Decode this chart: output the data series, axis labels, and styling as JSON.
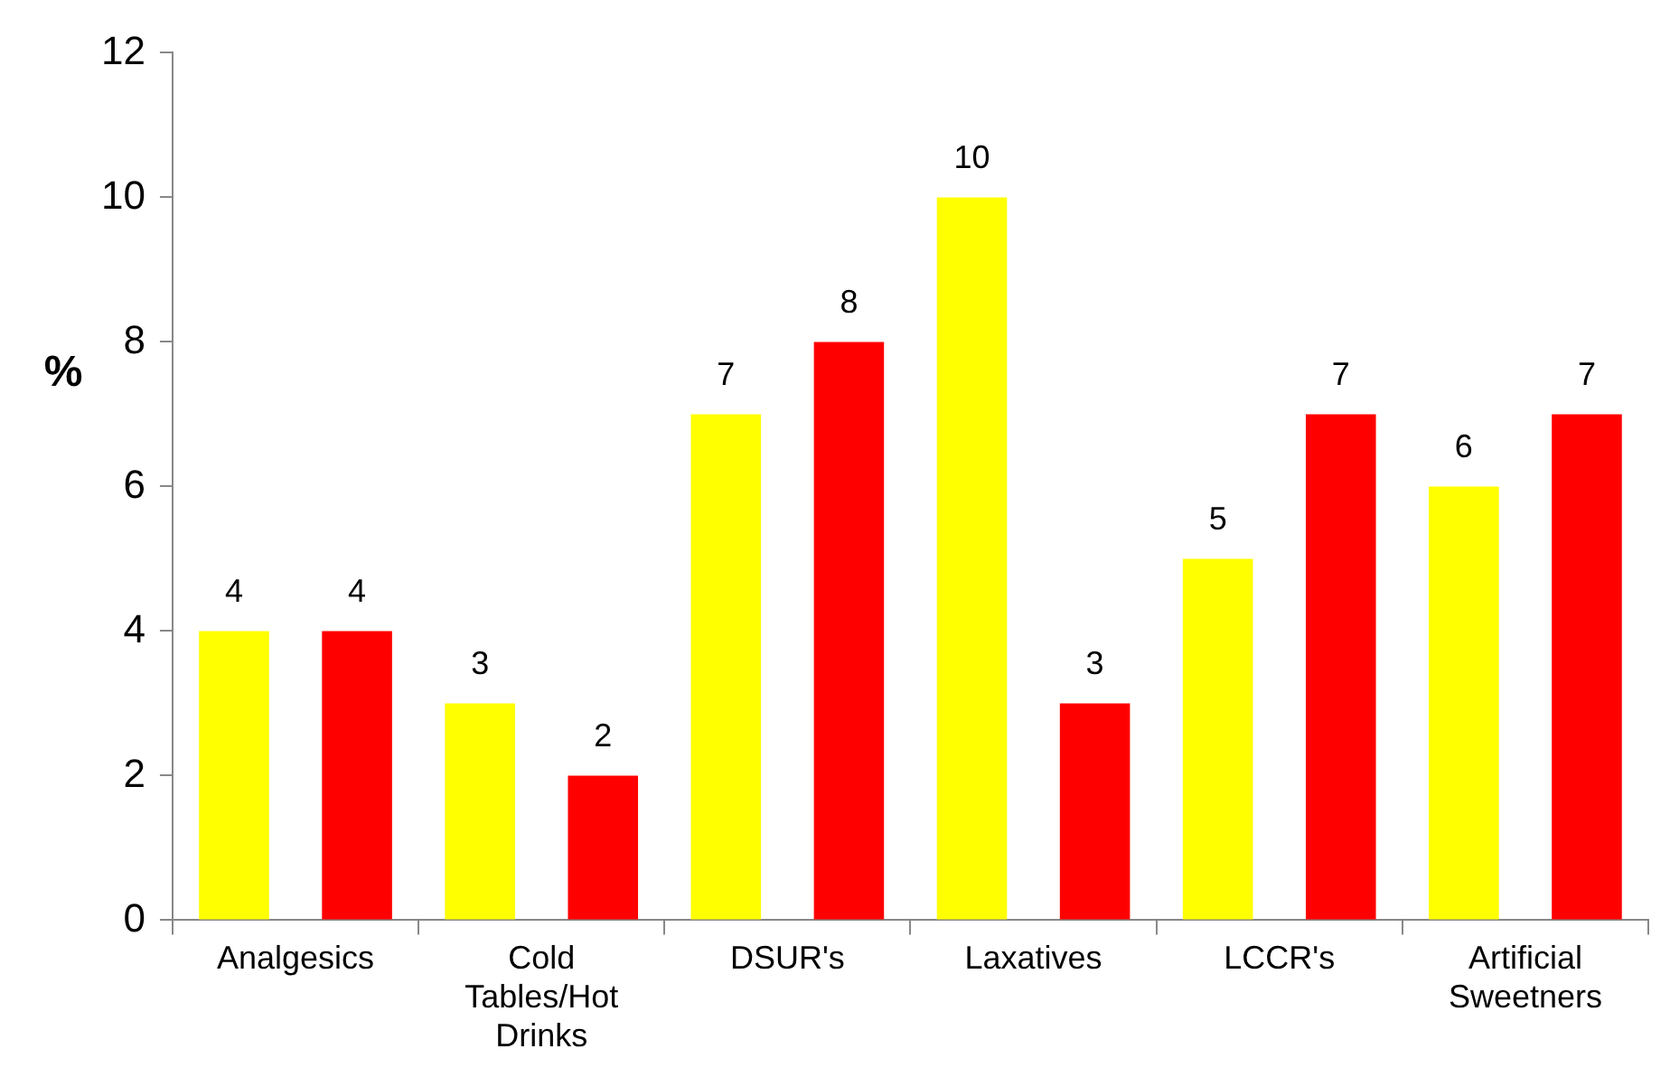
{
  "chart_data": {
    "type": "bar",
    "ylabel": "%",
    "categories": [
      "Analgesics",
      "Cold Tables/Hot Drinks",
      "DSUR's",
      "Laxatives",
      "LCCR's",
      "Artificial Sweetners"
    ],
    "series": [
      {
        "color": "#ffff00",
        "values": [
          4,
          3,
          7,
          10,
          5,
          6
        ]
      },
      {
        "color": "#ff0000",
        "values": [
          4,
          2,
          8,
          3,
          7,
          7
        ]
      }
    ],
    "ylim": [
      0,
      12
    ],
    "yticks": [
      0,
      2,
      4,
      6,
      8,
      10,
      12
    ],
    "grid": false,
    "legend": false,
    "data_labels": true
  }
}
